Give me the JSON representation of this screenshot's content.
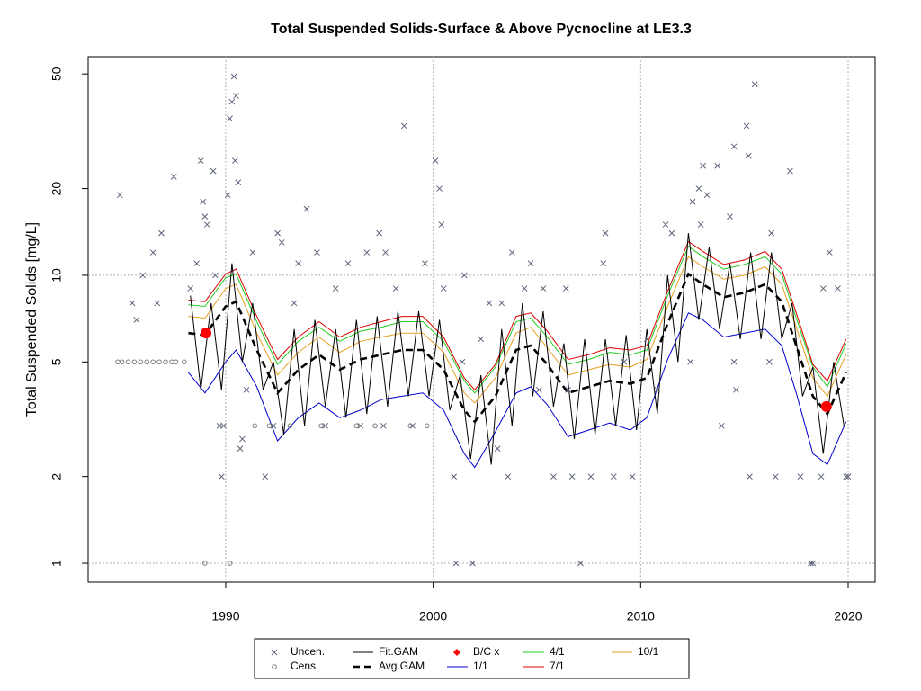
{
  "chart_data": {
    "type": "scatter",
    "title": "Total Suspended Solids-Surface & Above Pycnocline at LE3.3",
    "y_label": "Total Suspended Solids [mg/L]",
    "xlim": [
      1983.37,
      2021.3
    ],
    "ylim": [
      0.86,
      57.4
    ],
    "y_log": true,
    "xticks": [
      1990,
      2000,
      2010,
      2020
    ],
    "yticks": [
      1,
      2,
      5,
      10,
      20,
      50
    ],
    "xgrid": [
      1990,
      2000,
      2010,
      2020
    ],
    "ygrid": [
      1,
      10
    ],
    "legend": "bottom",
    "series": [
      {
        "name": "Uncen.",
        "mark": "x",
        "color": "#5a6078",
        "x": [
          1984.9,
          1985.5,
          1985.7,
          1986,
          1986.5,
          1986.7,
          1986.9,
          1987.5,
          1988.3,
          1988.6,
          1988.8,
          1988.9,
          1989,
          1989.1,
          1989.4,
          1989.5,
          1989.7,
          1989.8,
          1990.1,
          1990.2,
          1990.3,
          1990.4,
          1990.5,
          1990.45,
          1990.6,
          1990.7,
          1990.8,
          1991.3,
          1991.9,
          1992.5,
          1992.7,
          1993.3,
          1993.5,
          1993.9,
          1994.4,
          1995.3,
          1995.9,
          1996.8,
          1997.4,
          1997.7,
          1998.2,
          1998.6,
          1999.6,
          2000.1,
          2000.3,
          2000.4,
          2000.5,
          2001,
          2001.1,
          2001.5,
          2001.9,
          2002.3,
          2003.1,
          2003.6,
          2003.8,
          2004.4,
          2004.7,
          2005.3,
          2005.8,
          2006.4,
          2006.7,
          2007.1,
          2007.6,
          2008.2,
          2008.3,
          2008.7,
          2009.6,
          2010.3,
          2011.2,
          2011.5,
          2012.5,
          2012.8,
          2012.9,
          2013,
          2013.2,
          2013.7,
          2013.9,
          2014.3,
          2014.5,
          2014.6,
          2015.1,
          2015.2,
          2015.5,
          2015.25,
          2016.3,
          2016.5,
          2017.2,
          2017.7,
          2018.2,
          2018.3,
          2018.7,
          2018.8,
          2019.1,
          2019.5,
          2019.9,
          2020,
          1989.9,
          1991,
          1992.3,
          1994.8,
          1996.5,
          1997.6,
          1999,
          2001.4,
          2002.7,
          2003.3,
          2005.1,
          2006.5,
          2009.2,
          2010.8,
          2012.4,
          2014.5,
          2016.2
        ],
        "values": [
          19,
          8,
          7,
          10,
          12,
          8,
          14,
          22,
          9,
          11,
          25,
          18,
          16,
          15,
          23,
          10,
          3,
          2,
          19,
          35,
          40,
          49,
          42,
          25,
          21,
          2.5,
          2.7,
          12,
          2,
          14,
          13,
          8,
          11,
          17,
          12,
          9,
          11,
          12,
          14,
          12,
          9,
          33,
          11,
          25,
          20,
          15,
          9,
          2,
          1,
          10,
          1,
          6,
          2.5,
          2,
          12,
          9,
          11,
          9,
          2,
          9,
          2,
          1,
          2,
          11,
          14,
          2,
          2,
          6,
          15,
          14,
          18,
          20,
          15,
          24,
          19,
          24,
          3,
          16,
          28,
          4,
          33,
          26,
          46,
          2,
          14,
          2,
          23,
          2,
          1,
          1,
          2,
          9,
          12,
          9,
          2,
          2,
          3,
          4,
          3,
          3,
          3,
          3,
          3,
          5,
          8,
          8,
          4,
          4,
          5,
          4,
          5,
          5,
          5
        ]
      },
      {
        "name": "Cens.",
        "mark": "circle",
        "color": "#808080",
        "x": [
          1984.8,
          1985,
          1985.3,
          1985.6,
          1985.9,
          1986.2,
          1986.5,
          1986.8,
          1987.1,
          1987.4,
          1987.6,
          1988,
          1989,
          1990.2,
          1991.4,
          1992.1,
          1993.1,
          1994.6,
          1996.3,
          1997.2,
          1998.9,
          1999.7
        ],
        "values": [
          5,
          5,
          5,
          5,
          5,
          5,
          5,
          5,
          5,
          5,
          5,
          5,
          1,
          1,
          3,
          3,
          3,
          3,
          3,
          3,
          3,
          3
        ]
      },
      {
        "name": "Fit.GAM",
        "mark": "line",
        "color": "#000000",
        "x": [
          1988.3,
          1988.8,
          1989.3,
          1989.8,
          1990.3,
          1990.8,
          1991.3,
          1991.8,
          1992.3,
          1992.8,
          1993.3,
          1993.8,
          1994.3,
          1994.8,
          1995.3,
          1995.8,
          1996.3,
          1996.8,
          1997.3,
          1997.8,
          1998.3,
          1998.8,
          1999.3,
          1999.8,
          2000.3,
          2000.8,
          2001.3,
          2001.8,
          2002.3,
          2002.8,
          2003.3,
          2003.8,
          2004.3,
          2004.8,
          2005.3,
          2005.8,
          2006.3,
          2006.8,
          2007.3,
          2007.8,
          2008.3,
          2008.8,
          2009.3,
          2009.8,
          2010.3,
          2010.8,
          2011.3,
          2011.8,
          2012.3,
          2012.8,
          2013.3,
          2013.8,
          2014.3,
          2014.8,
          2015.3,
          2015.8,
          2016.3,
          2016.8,
          2017.3,
          2017.8,
          2018.3,
          2018.8,
          2019.3,
          2019.8
        ],
        "values": [
          8.5,
          4.0,
          8.0,
          4.0,
          11.0,
          5.0,
          8.0,
          4.0,
          5.0,
          2.8,
          6.5,
          3.0,
          7.0,
          3.5,
          6.5,
          3.2,
          7.0,
          3.3,
          7.2,
          3.5,
          7.5,
          3.8,
          7.5,
          3.8,
          7.0,
          3.4,
          4.5,
          2.3,
          4.5,
          2.2,
          6.5,
          3.0,
          8.0,
          3.8,
          7.5,
          3.5,
          5.8,
          2.7,
          6.0,
          2.8,
          6.0,
          3.0,
          6.2,
          2.9,
          6.5,
          3.3,
          10.0,
          5.0,
          14.0,
          7.0,
          12.5,
          6.5,
          11.0,
          6.0,
          12.0,
          6.0,
          12.0,
          6.0,
          8.0,
          3.8,
          4.8,
          2.4,
          5.0,
          3.0
        ]
      },
      {
        "name": "Avg.GAM",
        "mark": "dashed",
        "color": "#000000",
        "x": [
          1988.2,
          1989,
          1990,
          1990.5,
          1991.5,
          1992.5,
          1993.5,
          1994.5,
          1995.5,
          1996.5,
          1997.5,
          1998.5,
          1999.5,
          2000.5,
          2001.5,
          2002,
          2003,
          2004,
          2004.7,
          2005.5,
          2006.5,
          2007.5,
          2008.5,
          2009.5,
          2010.3,
          2011.3,
          2012.3,
          2013,
          2014,
          2015,
          2016,
          2016.8,
          2017.5,
          2018.3,
          2019,
          2019.9
        ],
        "values": [
          6.3,
          6.2,
          7.8,
          8.1,
          5.5,
          3.9,
          4.7,
          5.3,
          4.7,
          5.1,
          5.3,
          5.5,
          5.5,
          4.7,
          3.4,
          3.1,
          3.8,
          5.5,
          5.7,
          4.9,
          3.9,
          4.1,
          4.3,
          4.2,
          4.4,
          6.8,
          10.1,
          9.3,
          8.4,
          8.7,
          9.3,
          8.1,
          5.7,
          3.8,
          3.3,
          4.6
        ]
      },
      {
        "name": "B/C x",
        "mark": "dot",
        "color": "#ff0000",
        "x": [
          1989.05,
          2018.95
        ],
        "values": [
          6.3,
          3.5
        ]
      },
      {
        "name": "1/1",
        "mark": "line",
        "color": "#0000cd",
        "x": [
          1988.2,
          1989,
          1990,
          1990.5,
          1991.5,
          1992.5,
          1993.5,
          1994.5,
          1995.5,
          1996.5,
          1997.5,
          1998.5,
          1999.5,
          2000.5,
          2001.5,
          2002,
          2003,
          2004,
          2004.7,
          2005.5,
          2006.5,
          2007.5,
          2008.5,
          2009.5,
          2010.3,
          2011.3,
          2012.3,
          2013,
          2014,
          2015,
          2016,
          2016.8,
          2017.5,
          2018.3,
          2019,
          2019.9
        ],
        "values": [
          4.6,
          3.9,
          5.0,
          5.5,
          4.1,
          2.66,
          3.2,
          3.6,
          3.2,
          3.4,
          3.7,
          3.8,
          3.9,
          3.4,
          2.4,
          2.15,
          2.86,
          3.9,
          4.1,
          3.55,
          2.75,
          2.9,
          3.07,
          2.9,
          3.2,
          5.1,
          7.4,
          7.0,
          6.1,
          6.3,
          6.5,
          5.7,
          3.9,
          2.4,
          2.2,
          3.1
        ]
      },
      {
        "name": "4/1",
        "mark": "line",
        "color": "#22cc22",
        "x": [
          1988.2,
          1989,
          1990,
          1990.5,
          1991.5,
          1992.5,
          1993.5,
          1994.5,
          1995.5,
          1996.5,
          1997.5,
          1998.5,
          1999.5,
          2000.5,
          2001.5,
          2002,
          2003,
          2004,
          2004.7,
          2005.5,
          2006.5,
          2007.5,
          2008.5,
          2009.5,
          2010.3,
          2011.3,
          2012.3,
          2013,
          2014,
          2015,
          2016,
          2016.8,
          2017.5,
          2018.3,
          2019,
          2019.9
        ],
        "values": [
          7.9,
          7.8,
          9.8,
          10.1,
          6.9,
          4.9,
          5.9,
          6.6,
          5.9,
          6.4,
          6.6,
          6.9,
          6.9,
          5.9,
          4.3,
          3.9,
          4.8,
          6.9,
          7.1,
          6.1,
          4.9,
          5.1,
          5.4,
          5.3,
          5.5,
          8.5,
          12.6,
          11.6,
          10.5,
          10.9,
          11.6,
          10.1,
          7.1,
          4.8,
          4.1,
          5.8
        ]
      },
      {
        "name": "7/1",
        "mark": "line",
        "color": "#dd0000",
        "x": [
          1988.2,
          1989,
          1990,
          1990.5,
          1991.5,
          1992.5,
          1993.5,
          1994.5,
          1995.5,
          1996.5,
          1997.5,
          1998.5,
          1999.5,
          2000.5,
          2001.5,
          2002,
          2003,
          2004,
          2004.7,
          2005.5,
          2006.5,
          2007.5,
          2008.5,
          2009.5,
          2010.3,
          2011.3,
          2012.3,
          2013,
          2014,
          2015,
          2016,
          2016.8,
          2017.5,
          2018.3,
          2019,
          2019.9
        ],
        "values": [
          8.2,
          8.1,
          10.1,
          10.5,
          7.2,
          5.1,
          6.1,
          6.9,
          6.1,
          6.6,
          6.9,
          7.2,
          7.2,
          6.1,
          4.4,
          4.0,
          4.9,
          7.2,
          7.4,
          6.4,
          5.1,
          5.3,
          5.6,
          5.5,
          5.7,
          8.8,
          13.1,
          12.1,
          10.9,
          11.3,
          12.1,
          10.5,
          7.4,
          4.9,
          4.3,
          6.0
        ]
      },
      {
        "name": "10/1",
        "mark": "line",
        "color": "#e8a020",
        "x": [
          1988.2,
          1989,
          1990,
          1990.5,
          1991.5,
          1992.5,
          1993.5,
          1994.5,
          1995.5,
          1996.5,
          1997.5,
          1998.5,
          1999.5,
          2000.5,
          2001.5,
          2002,
          2003,
          2004,
          2004.7,
          2005.5,
          2006.5,
          2007.5,
          2008.5,
          2009.5,
          2010.3,
          2011.3,
          2012.3,
          2013,
          2014,
          2015,
          2016,
          2016.8,
          2017.5,
          2018.3,
          2019,
          2019.9
        ],
        "values": [
          7.2,
          7.1,
          9.0,
          9.3,
          6.3,
          4.5,
          5.4,
          6.1,
          5.4,
          5.9,
          6.1,
          6.3,
          6.3,
          5.4,
          3.9,
          3.6,
          4.4,
          6.3,
          6.6,
          5.6,
          4.5,
          4.7,
          4.9,
          4.8,
          5.1,
          7.8,
          11.6,
          10.7,
          9.7,
          10.0,
          10.7,
          9.3,
          6.6,
          4.4,
          3.8,
          5.3
        ]
      }
    ]
  }
}
